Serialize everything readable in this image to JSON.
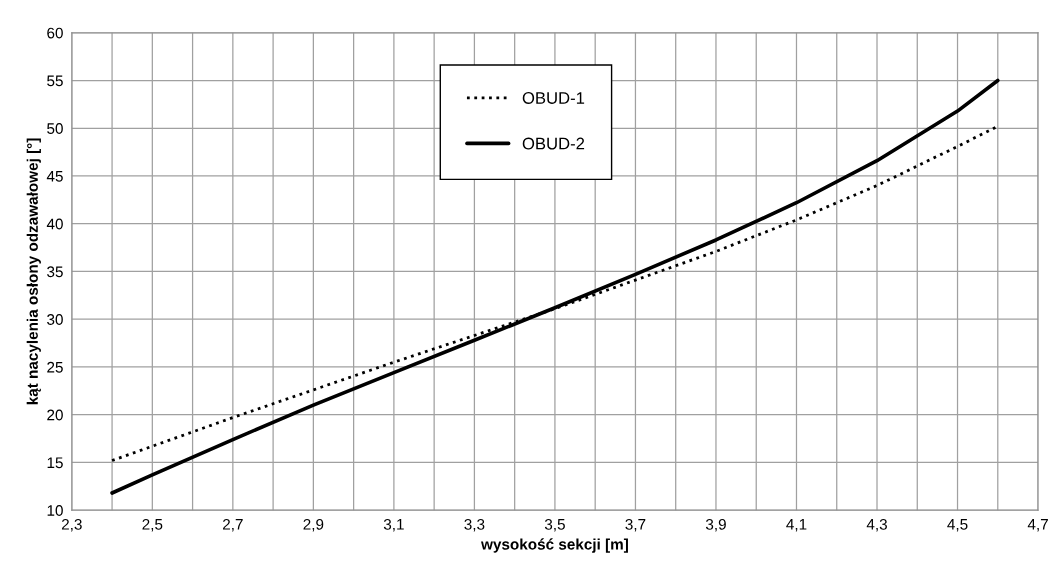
{
  "chart_data": {
    "type": "line",
    "xlabel": "wysokość sekcji [m]",
    "ylabel": "kąt nacylenia osłony odzawałowej [°]",
    "x": [
      2.4,
      2.5,
      2.7,
      2.9,
      3.1,
      3.3,
      3.5,
      3.7,
      3.9,
      4.1,
      4.3,
      4.5,
      4.6
    ],
    "series": [
      {
        "name": "OBUD-1",
        "color": "#000000",
        "line_style": "dotted",
        "values": [
          15.2,
          16.7,
          19.7,
          22.6,
          25.5,
          28.3,
          31.1,
          34.1,
          37.1,
          40.4,
          44.0,
          48.1,
          50.2
        ]
      },
      {
        "name": "OBUD-2",
        "color": "#000000",
        "line_style": "solid",
        "values": [
          11.8,
          13.7,
          17.4,
          21.0,
          24.4,
          27.8,
          31.2,
          34.7,
          38.3,
          42.2,
          46.6,
          51.8,
          55.0
        ]
      }
    ],
    "xlim": [
      2.3,
      4.7
    ],
    "xticks": [
      {
        "value": 2.3,
        "label": "2,3"
      },
      {
        "value": 2.4,
        "label": null
      },
      {
        "value": 2.5,
        "label": "2,5"
      },
      {
        "value": 2.6,
        "label": null
      },
      {
        "value": 2.7,
        "label": "2,7"
      },
      {
        "value": 2.8,
        "label": null
      },
      {
        "value": 2.9,
        "label": "2,9"
      },
      {
        "value": 3.0,
        "label": null
      },
      {
        "value": 3.1,
        "label": "3,1"
      },
      {
        "value": 3.2,
        "label": null
      },
      {
        "value": 3.3,
        "label": "3,3"
      },
      {
        "value": 3.4,
        "label": null
      },
      {
        "value": 3.5,
        "label": "3,5"
      },
      {
        "value": 3.6,
        "label": null
      },
      {
        "value": 3.7,
        "label": "3,7"
      },
      {
        "value": 3.8,
        "label": null
      },
      {
        "value": 3.9,
        "label": "3,9"
      },
      {
        "value": 4.0,
        "label": null
      },
      {
        "value": 4.1,
        "label": "4,1"
      },
      {
        "value": 4.2,
        "label": null
      },
      {
        "value": 4.3,
        "label": "4,3"
      },
      {
        "value": 4.4,
        "label": null
      },
      {
        "value": 4.5,
        "label": "4,5"
      },
      {
        "value": 4.6,
        "label": null
      },
      {
        "value": 4.7,
        "label": "4,7"
      }
    ],
    "ylim": [
      10,
      60
    ],
    "yticks": [
      10,
      15,
      20,
      25,
      30,
      35,
      40,
      45,
      50,
      55,
      60
    ],
    "grid": true,
    "legend": "top",
    "marker": "none"
  }
}
